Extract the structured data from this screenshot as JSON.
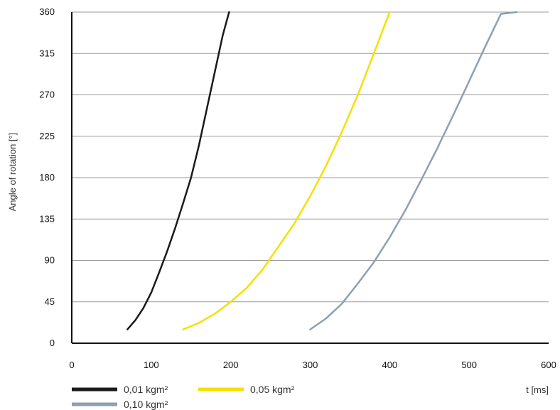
{
  "chart_data": {
    "type": "line",
    "title": "",
    "xlabel": "t [ms]",
    "ylabel": "Angle of rotation [°]",
    "xlim": [
      0,
      600
    ],
    "ylim": [
      0,
      360
    ],
    "x_ticks": [
      0,
      100,
      200,
      300,
      400,
      500,
      600
    ],
    "y_ticks": [
      0,
      45,
      90,
      135,
      180,
      225,
      270,
      315,
      360
    ],
    "grid": "horizontal",
    "legend": "bottom",
    "series": [
      {
        "name": "0,01 kgm²",
        "color": "#1a1a1a",
        "x": [
          70,
          80,
          90,
          100,
          110,
          120,
          130,
          140,
          150,
          160,
          170,
          180,
          190,
          198
        ],
        "y": [
          15,
          25,
          38,
          55,
          77,
          100,
          125,
          152,
          180,
          215,
          255,
          295,
          335,
          360
        ]
      },
      {
        "name": "0,05 kgm²",
        "color": "#f5e000",
        "x": [
          140,
          160,
          180,
          200,
          220,
          240,
          260,
          280,
          300,
          320,
          340,
          360,
          380,
          400
        ],
        "y": [
          15,
          22,
          32,
          45,
          60,
          80,
          105,
          130,
          160,
          193,
          230,
          270,
          315,
          360
        ]
      },
      {
        "name": "0,10 kgm²",
        "color": "#8f9faf",
        "x": [
          300,
          320,
          340,
          360,
          380,
          400,
          420,
          440,
          460,
          480,
          500,
          520,
          540,
          560
        ],
        "y": [
          15,
          27,
          43,
          65,
          88,
          115,
          145,
          178,
          212,
          248,
          285,
          322,
          358,
          362
        ]
      }
    ]
  }
}
